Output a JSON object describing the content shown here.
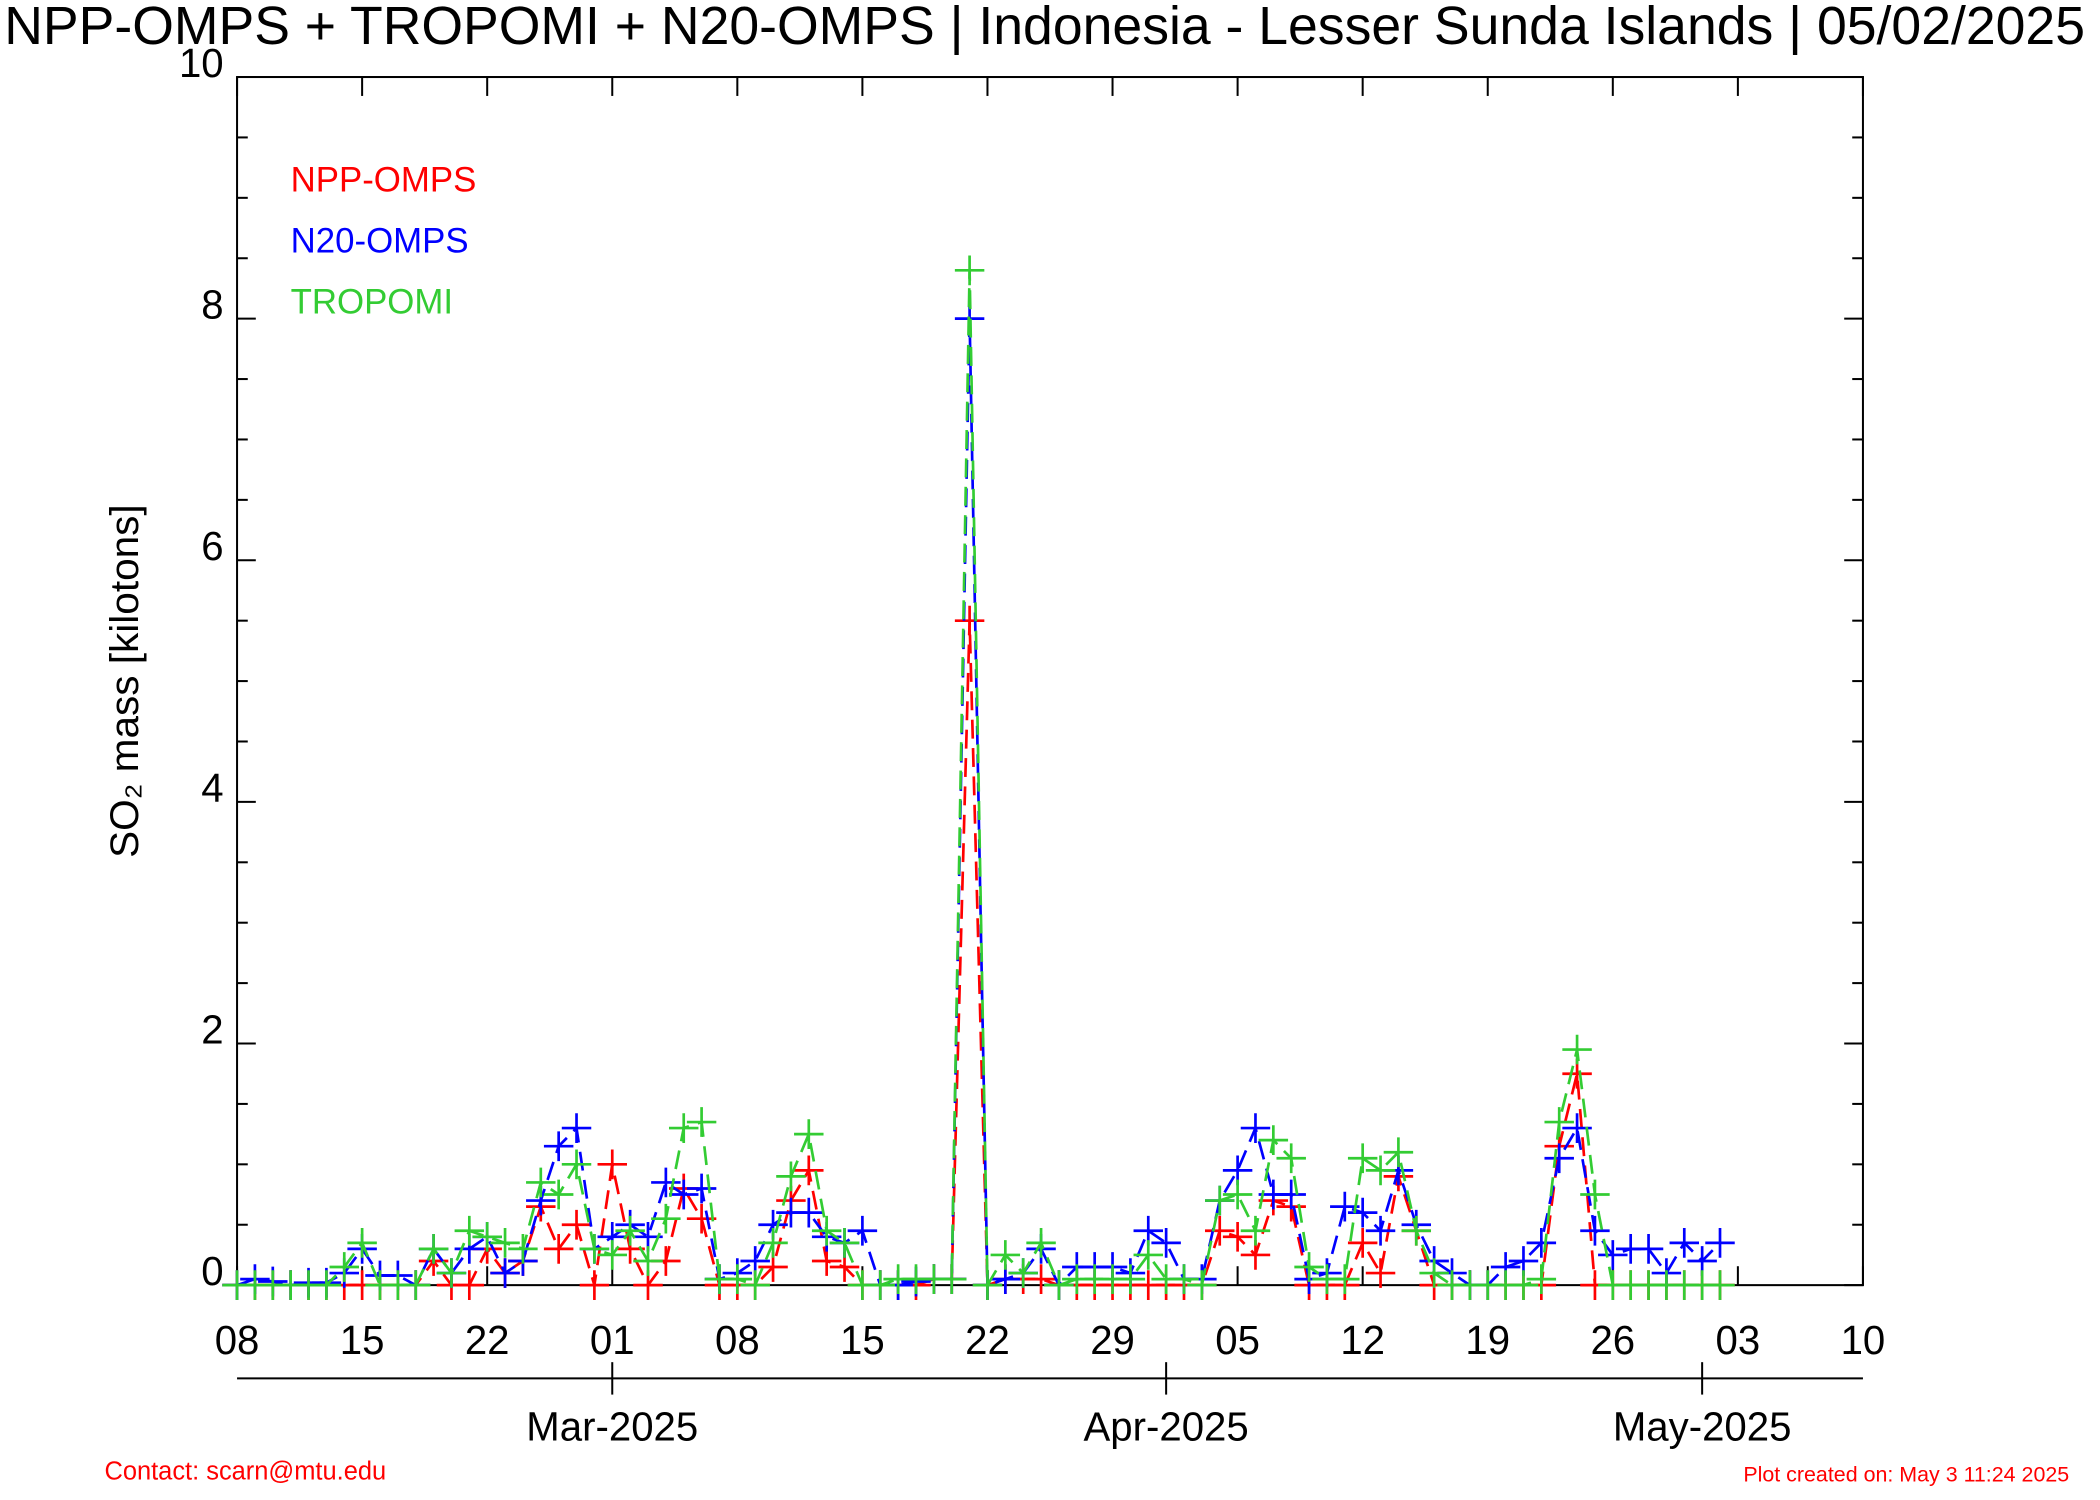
{
  "chart_data": {
    "type": "line",
    "title": "NPP-OMPS + TROPOMI + N20-OMPS | Indonesia - Lesser Sunda Islands | 05/02/2025",
    "ylabel": "SO₂ mass [kilotons]",
    "contact": "Contact: scarn@mtu.edu",
    "created": "Plot created on: May  3 11:24 2025",
    "x": [
      "2025-02-08",
      "2025-02-09",
      "2025-02-10",
      "2025-02-11",
      "2025-02-12",
      "2025-02-13",
      "2025-02-14",
      "2025-02-15",
      "2025-02-16",
      "2025-02-17",
      "2025-02-18",
      "2025-02-19",
      "2025-02-20",
      "2025-02-21",
      "2025-02-22",
      "2025-02-23",
      "2025-02-24",
      "2025-02-25",
      "2025-02-26",
      "2025-02-27",
      "2025-02-28",
      "2025-03-01",
      "2025-03-02",
      "2025-03-03",
      "2025-03-04",
      "2025-03-05",
      "2025-03-06",
      "2025-03-07",
      "2025-03-08",
      "2025-03-09",
      "2025-03-10",
      "2025-03-11",
      "2025-03-12",
      "2025-03-13",
      "2025-03-14",
      "2025-03-15",
      "2025-03-16",
      "2025-03-17",
      "2025-03-18",
      "2025-03-19",
      "2025-03-20",
      "2025-03-21",
      "2025-03-22",
      "2025-03-23",
      "2025-03-24",
      "2025-03-25",
      "2025-03-26",
      "2025-03-27",
      "2025-03-28",
      "2025-03-29",
      "2025-03-30",
      "2025-03-31",
      "2025-04-01",
      "2025-04-02",
      "2025-04-03",
      "2025-04-04",
      "2025-04-05",
      "2025-04-06",
      "2025-04-07",
      "2025-04-08",
      "2025-04-09",
      "2025-04-10",
      "2025-04-11",
      "2025-04-12",
      "2025-04-13",
      "2025-04-14",
      "2025-04-15",
      "2025-04-16",
      "2025-04-17",
      "2025-04-18",
      "2025-04-19",
      "2025-04-20",
      "2025-04-21",
      "2025-04-22",
      "2025-04-23",
      "2025-04-24",
      "2025-04-25",
      "2025-04-26",
      "2025-04-27",
      "2025-04-28",
      "2025-04-29",
      "2025-04-30",
      "2025-05-01",
      "2025-05-02"
    ],
    "series": [
      {
        "name": "NPP-OMPS",
        "color": "#ff0000",
        "values": [
          0,
          0,
          0,
          0,
          0,
          0,
          0,
          0,
          0,
          0,
          0,
          0.2,
          0,
          0,
          0.3,
          0.1,
          0.2,
          0.65,
          0.3,
          0.5,
          0,
          1.0,
          0.3,
          0,
          0.2,
          0.8,
          0.55,
          0,
          0,
          0,
          0.15,
          0.7,
          0.95,
          0.2,
          0.15,
          0,
          0,
          0,
          0,
          0.05,
          0.05,
          5.5,
          0,
          0.05,
          0.05,
          0.05,
          0,
          0,
          0,
          0,
          0,
          0,
          0,
          0,
          0,
          0.45,
          0.4,
          0.25,
          0.7,
          0.65,
          0,
          0,
          0,
          0.35,
          0.1,
          0.9,
          0.45,
          0,
          0,
          0,
          0,
          0,
          0,
          0,
          1.15,
          1.75,
          0,
          0,
          0,
          0,
          0,
          0,
          0,
          0
        ]
      },
      {
        "name": "N20-OMPS",
        "color": "#0000ff",
        "values": [
          0,
          0.05,
          0.03,
          0,
          0.02,
          0.02,
          0.1,
          0.3,
          0.08,
          0.08,
          0,
          0.3,
          0.1,
          0.3,
          0.4,
          0.1,
          0.2,
          0.7,
          1.15,
          1.3,
          0.3,
          0.4,
          0.5,
          0.4,
          0.85,
          0.75,
          0.8,
          0.05,
          0.1,
          0.2,
          0.5,
          0.6,
          0.6,
          0.4,
          0.35,
          0.45,
          0,
          0,
          0.03,
          0.05,
          0.05,
          8.0,
          0,
          0.05,
          0.1,
          0.3,
          0,
          0.15,
          0.15,
          0.15,
          0.1,
          0.45,
          0.35,
          0.05,
          0.05,
          0.7,
          0.95,
          1.3,
          0.75,
          0.75,
          0.05,
          0.1,
          0.65,
          0.6,
          0.45,
          0.95,
          0.5,
          0.2,
          0.1,
          0,
          0,
          0.15,
          0.2,
          0.35,
          1.05,
          1.3,
          0.45,
          0.25,
          0.3,
          0.3,
          0.1,
          0.35,
          0.2,
          0.35
        ]
      },
      {
        "name": "TROPOMI",
        "color": "#33cc33",
        "values": [
          0,
          0,
          0,
          0,
          0,
          0,
          0.15,
          0.35,
          0,
          0,
          0,
          0.3,
          0.1,
          0.45,
          0.4,
          0.35,
          0.3,
          0.85,
          0.75,
          1.0,
          0.3,
          0.25,
          0.45,
          0.2,
          0.55,
          1.3,
          1.35,
          0.05,
          0.05,
          0,
          0.35,
          0.9,
          1.25,
          0.45,
          0.35,
          0,
          0,
          0.05,
          0.05,
          0.05,
          0.05,
          8.4,
          0,
          0.25,
          0.1,
          0.35,
          0,
          0.05,
          0.05,
          0.05,
          0.05,
          0.25,
          0.05,
          0.05,
          0,
          0.7,
          0.75,
          0.45,
          1.2,
          1.05,
          0.15,
          0.05,
          0.05,
          1.05,
          0.95,
          1.1,
          0.45,
          0.1,
          0,
          0,
          0,
          0,
          0,
          0.05,
          1.35,
          1.95,
          0.75,
          0,
          0,
          0,
          0,
          0,
          0,
          0
        ]
      }
    ],
    "xlim": [
      "2025-02-08",
      "2025-05-10"
    ],
    "xticks": [
      {
        "value": "2025-02-08",
        "label": "08"
      },
      {
        "value": "2025-02-15",
        "label": "15"
      },
      {
        "value": "2025-02-22",
        "label": "22"
      },
      {
        "value": "2025-03-01",
        "label": "01"
      },
      {
        "value": "2025-03-08",
        "label": "08"
      },
      {
        "value": "2025-03-15",
        "label": "15"
      },
      {
        "value": "2025-03-22",
        "label": "22"
      },
      {
        "value": "2025-03-29",
        "label": "29"
      },
      {
        "value": "2025-04-05",
        "label": "05"
      },
      {
        "value": "2025-04-12",
        "label": "12"
      },
      {
        "value": "2025-04-19",
        "label": "19"
      },
      {
        "value": "2025-04-26",
        "label": "26"
      },
      {
        "value": "2025-05-03",
        "label": "03"
      },
      {
        "value": "2025-05-10",
        "label": "10"
      }
    ],
    "monthticks": [
      {
        "value": "2025-03-01",
        "label": "Mar-2025"
      },
      {
        "value": "2025-04-01",
        "label": "Apr-2025"
      },
      {
        "value": "2025-05-01",
        "label": "May-2025"
      }
    ],
    "ylim": [
      0,
      10
    ],
    "yticks": [
      0,
      2,
      4,
      6,
      8,
      10
    ],
    "yminorticks": [
      0.5,
      1,
      1.5,
      2.5,
      3,
      3.5,
      4.5,
      5,
      5.5,
      6.5,
      7,
      7.5,
      8.5,
      9,
      9.5
    ]
  }
}
